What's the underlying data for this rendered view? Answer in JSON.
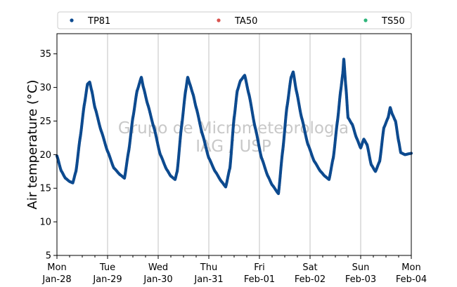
{
  "chart_data": {
    "type": "scatter",
    "title": "",
    "xlabel": "",
    "ylabel": "Air temperature (°C)",
    "ylim": [
      5,
      38
    ],
    "yticks": [
      5,
      10,
      15,
      20,
      25,
      30,
      35
    ],
    "xlim": [
      "2019-01-28 00:00",
      "2019-02-04 00:00"
    ],
    "x_tick_labels": [
      {
        "day": "Mon",
        "date": "Jan-28"
      },
      {
        "day": "Tue",
        "date": "Jan-29"
      },
      {
        "day": "Wed",
        "date": "Jan-30"
      },
      {
        "day": "Thu",
        "date": "Jan-31"
      },
      {
        "day": "Fri",
        "date": "Feb-01"
      },
      {
        "day": "Sat",
        "date": "Feb-02"
      },
      {
        "day": "Sun",
        "date": "Feb-03"
      },
      {
        "day": "Mon",
        "date": "Feb-04"
      }
    ],
    "grid": "vertical major",
    "legend": {
      "placement": "top (above plot, horizontal)",
      "entries": [
        {
          "name": "TP81",
          "color": "#0d4a8f"
        },
        {
          "name": "TA50",
          "color": "#d9534f"
        },
        {
          "name": "TS50",
          "color": "#2db57a"
        }
      ]
    },
    "watermark": [
      "Grupo de Micrometeorologia",
      "IAG / USP"
    ],
    "series": [
      {
        "name": "TP81",
        "color": "#0d4a8f",
        "points": [
          [
            "2019-01-28 00:00",
            19.8
          ],
          [
            "2019-01-28 02:00",
            17.6
          ],
          [
            "2019-01-28 04:00",
            16.5
          ],
          [
            "2019-01-28 06:00",
            16.0
          ],
          [
            "2019-01-28 07:30",
            15.8
          ],
          [
            "2019-01-28 09:00",
            17.5
          ],
          [
            "2019-01-28 11:00",
            22.5
          ],
          [
            "2019-01-28 13:00",
            27.5
          ],
          [
            "2019-01-28 14:30",
            30.5
          ],
          [
            "2019-01-28 15:30",
            30.8
          ],
          [
            "2019-01-28 16:30",
            29.5
          ],
          [
            "2019-01-28 18:00",
            27.0
          ],
          [
            "2019-01-28 21:00",
            23.5
          ],
          [
            "2019-01-29 00:00",
            20.5
          ],
          [
            "2019-01-29 03:00",
            18.0
          ],
          [
            "2019-01-29 06:00",
            17.0
          ],
          [
            "2019-01-29 08:00",
            16.5
          ],
          [
            "2019-01-29 10:00",
            20.5
          ],
          [
            "2019-01-29 12:00",
            25.5
          ],
          [
            "2019-01-29 14:00",
            29.5
          ],
          [
            "2019-01-29 16:00",
            31.5
          ],
          [
            "2019-01-29 17:00",
            30.0
          ],
          [
            "2019-01-29 19:00",
            27.5
          ],
          [
            "2019-01-29 22:00",
            24.0
          ],
          [
            "2019-01-30 01:00",
            20.0
          ],
          [
            "2019-01-30 04:00",
            17.8
          ],
          [
            "2019-01-30 06:00",
            16.8
          ],
          [
            "2019-01-30 08:00",
            16.3
          ],
          [
            "2019-01-30 09:00",
            17.5
          ],
          [
            "2019-01-30 11:00",
            24.0
          ],
          [
            "2019-01-30 13:00",
            29.5
          ],
          [
            "2019-01-30 14:00",
            31.5
          ],
          [
            "2019-01-30 15:00",
            30.5
          ],
          [
            "2019-01-30 16:30",
            29.0
          ],
          [
            "2019-01-30 18:00",
            27.0
          ],
          [
            "2019-01-30 21:00",
            23.0
          ],
          [
            "2019-01-31 00:00",
            19.5
          ],
          [
            "2019-01-31 03:00",
            17.5
          ],
          [
            "2019-01-31 06:00",
            16.0
          ],
          [
            "2019-01-31 08:00",
            15.2
          ],
          [
            "2019-01-31 10:00",
            18.0
          ],
          [
            "2019-01-31 12:00",
            25.5
          ],
          [
            "2019-01-31 13:30",
            29.5
          ],
          [
            "2019-01-31 15:00",
            31.0
          ],
          [
            "2019-01-31 17:00",
            31.8
          ],
          [
            "2019-01-31 19:00",
            29.0
          ],
          [
            "2019-01-31 22:00",
            24.0
          ],
          [
            "2019-02-01 01:00",
            19.5
          ],
          [
            "2019-02-01 04:00",
            16.8
          ],
          [
            "2019-02-01 06:00",
            15.5
          ],
          [
            "2019-02-01 09:00",
            14.2
          ],
          [
            "2019-02-01 11:00",
            20.5
          ],
          [
            "2019-02-01 13:00",
            27.0
          ],
          [
            "2019-02-01 15:00",
            31.5
          ],
          [
            "2019-02-01 16:00",
            32.3
          ],
          [
            "2019-02-01 17:30",
            29.5
          ],
          [
            "2019-02-01 20:00",
            25.5
          ],
          [
            "2019-02-01 23:00",
            21.5
          ],
          [
            "2019-02-02 02:00",
            19.0
          ],
          [
            "2019-02-02 05:00",
            17.5
          ],
          [
            "2019-02-02 07:00",
            16.8
          ],
          [
            "2019-02-02 09:00",
            16.3
          ],
          [
            "2019-02-02 11:00",
            19.5
          ],
          [
            "2019-02-02 13:00",
            25.0
          ],
          [
            "2019-02-02 14:30",
            29.5
          ],
          [
            "2019-02-02 15:30",
            32.0
          ],
          [
            "2019-02-02 16:00",
            34.2
          ],
          [
            "2019-02-02 17:00",
            30.0
          ],
          [
            "2019-02-02 18:00",
            25.5
          ],
          [
            "2019-02-02 20:00",
            24.5
          ],
          [
            "2019-02-02 22:00",
            22.5
          ],
          [
            "2019-02-03 00:00",
            21.0
          ],
          [
            "2019-02-03 01:30",
            22.3
          ],
          [
            "2019-02-03 03:00",
            21.5
          ],
          [
            "2019-02-03 05:00",
            18.5
          ],
          [
            "2019-02-03 07:00",
            17.5
          ],
          [
            "2019-02-03 09:00",
            19.0
          ],
          [
            "2019-02-03 11:00",
            24.0
          ],
          [
            "2019-02-03 13:00",
            25.5
          ],
          [
            "2019-02-03 14:00",
            27.0
          ],
          [
            "2019-02-03 15:00",
            26.0
          ],
          [
            "2019-02-03 16:30",
            25.0
          ],
          [
            "2019-02-03 18:00",
            22.0
          ],
          [
            "2019-02-03 19:00",
            20.3
          ],
          [
            "2019-02-03 21:00",
            20.0
          ],
          [
            "2019-02-04 00:00",
            20.2
          ]
        ]
      },
      {
        "name": "TA50",
        "color": "#d9534f",
        "points": []
      },
      {
        "name": "TS50",
        "color": "#2db57a",
        "points": []
      }
    ]
  }
}
